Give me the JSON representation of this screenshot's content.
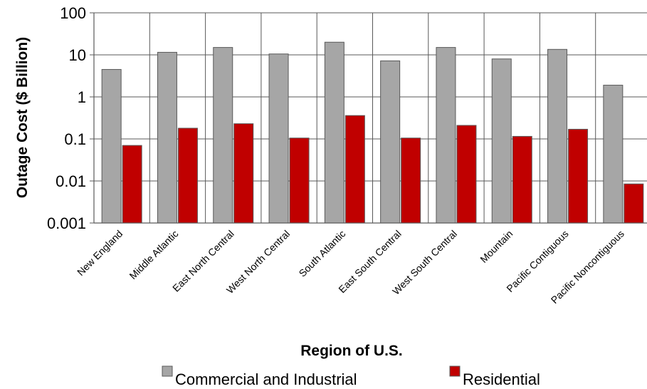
{
  "chart_data": {
    "type": "bar",
    "title": "",
    "xlabel": "Region of U.S.",
    "ylabel": "Outage Cost ($ Billion)",
    "yscale": "log",
    "ylim": [
      0.001,
      100
    ],
    "yticks": [
      "0.001",
      "0.01",
      "0.1",
      "1",
      "10",
      "100"
    ],
    "grid": true,
    "legend_position": "bottom",
    "categories": [
      "New England",
      "Middle Atlantic",
      "East North Central",
      "West North Central",
      "South Atlantic",
      "East South Central",
      "West South Central",
      "Mountain",
      "Pacific Contiguous",
      "Pacific Noncontiguous"
    ],
    "series": [
      {
        "name": "Commercial and Industrial",
        "color": "#a6a6a6",
        "values": [
          4.5,
          11.5,
          15,
          10.5,
          20,
          7.2,
          15,
          8,
          13.5,
          1.9
        ]
      },
      {
        "name": "Residential",
        "color": "#c00000",
        "values": [
          0.07,
          0.18,
          0.23,
          0.105,
          0.36,
          0.105,
          0.21,
          0.115,
          0.17,
          0.0085
        ]
      }
    ]
  }
}
